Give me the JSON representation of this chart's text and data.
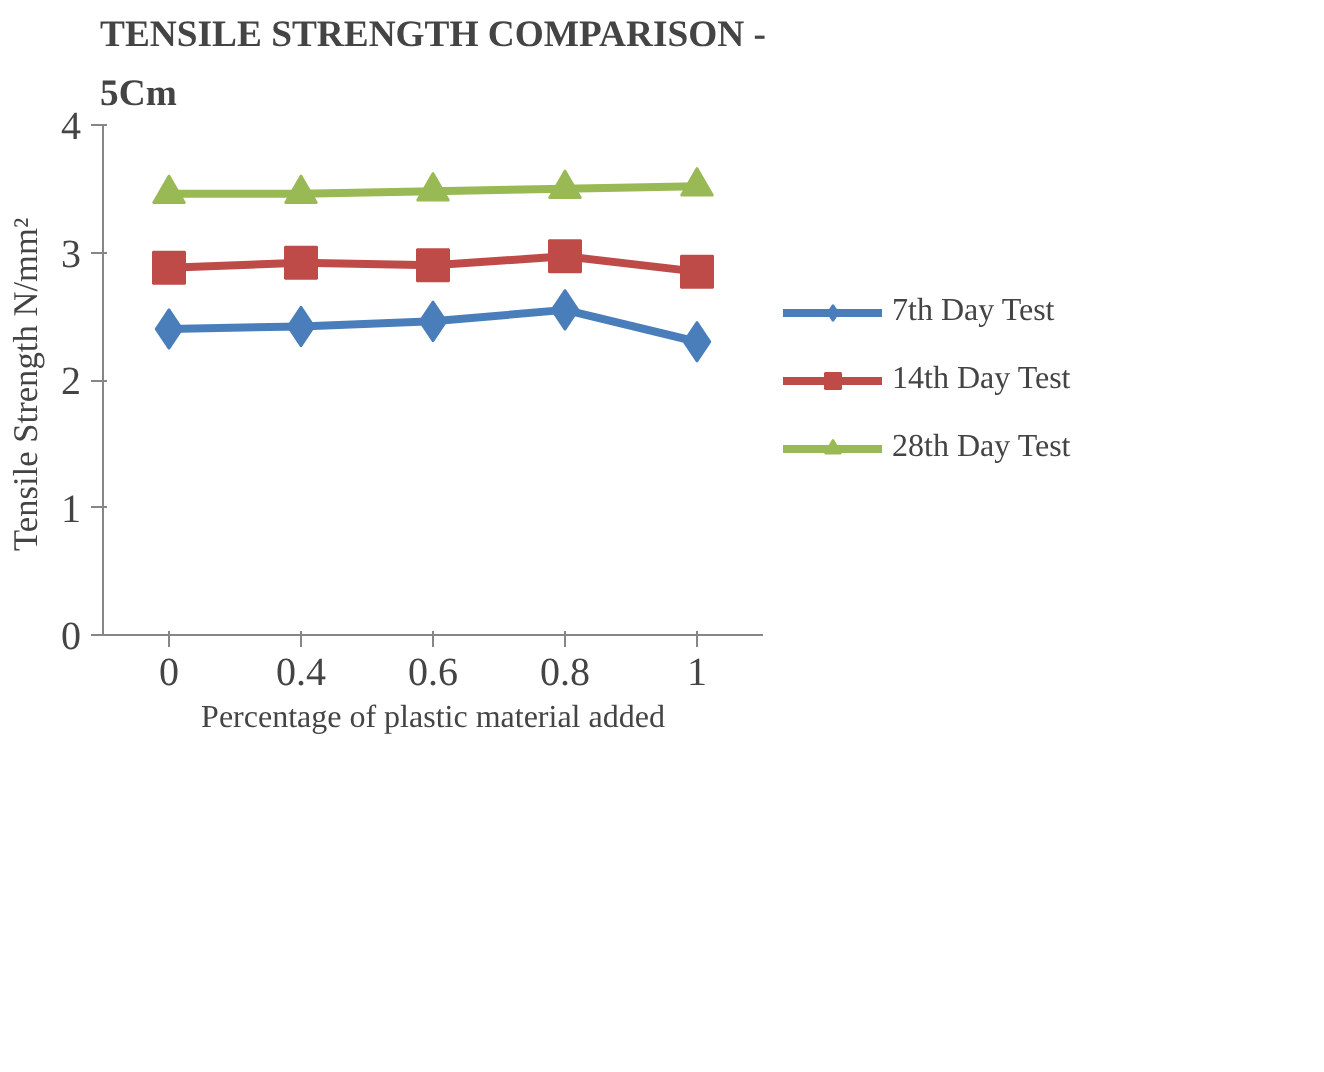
{
  "chart_data": {
    "type": "line",
    "title": "TENSILE STRENGTH COMPARISON -\n5Cm",
    "xlabel": "Percentage of plastic material added",
    "ylabel": "Tensile  Strength N/mm²",
    "categories": [
      "0",
      "0.4",
      "0.6",
      "0.8",
      "1"
    ],
    "series": [
      {
        "name": "7th Day Test",
        "color": "#4a7ebb",
        "marker": "diamond",
        "values": [
          2.4,
          2.42,
          2.46,
          2.55,
          2.3
        ]
      },
      {
        "name": "14th Day Test",
        "color": "#be4b48",
        "marker": "square",
        "values": [
          2.88,
          2.92,
          2.9,
          2.97,
          2.85
        ]
      },
      {
        "name": "28th Day Test",
        "color": "#98b954",
        "marker": "triangle",
        "values": [
          3.46,
          3.46,
          3.48,
          3.5,
          3.52
        ]
      }
    ],
    "ylim": [
      0,
      4
    ],
    "yticks": [
      0,
      1,
      2,
      3,
      4
    ],
    "legend": "right"
  }
}
